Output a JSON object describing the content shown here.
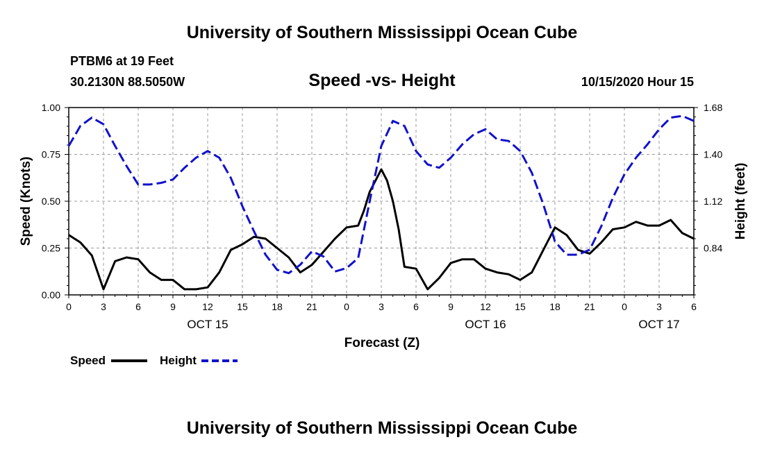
{
  "header": {
    "title_top": "University of Southern Mississippi Ocean Cube",
    "title_bottom": "University of Southern Mississippi Ocean Cube",
    "station": "PTBM6 at 19 Feet",
    "coords": "30.2130N 88.5050W",
    "subtitle": "Speed -vs- Height",
    "timestamp": "10/15/2020 Hour 15"
  },
  "chart_data": {
    "type": "line",
    "title": "Speed -vs- Height",
    "xlabel": "Forecast (Z)",
    "ylabel_left": "Speed (Knots)",
    "ylabel_right": "Height (feet)",
    "x_range_hours": [
      0,
      54
    ],
    "x_ticks": [
      {
        "h": 0,
        "label": "0"
      },
      {
        "h": 3,
        "label": "3"
      },
      {
        "h": 6,
        "label": "6"
      },
      {
        "h": 9,
        "label": "9"
      },
      {
        "h": 12,
        "label": "12"
      },
      {
        "h": 15,
        "label": "15"
      },
      {
        "h": 18,
        "label": "18"
      },
      {
        "h": 21,
        "label": "21"
      },
      {
        "h": 24,
        "label": "0"
      },
      {
        "h": 27,
        "label": "3"
      },
      {
        "h": 30,
        "label": "6"
      },
      {
        "h": 33,
        "label": "9"
      },
      {
        "h": 36,
        "label": "12"
      },
      {
        "h": 39,
        "label": "15"
      },
      {
        "h": 42,
        "label": "18"
      },
      {
        "h": 45,
        "label": "21"
      },
      {
        "h": 48,
        "label": "0"
      },
      {
        "h": 51,
        "label": "3"
      },
      {
        "h": 54,
        "label": "6"
      }
    ],
    "date_labels": [
      {
        "h": 12,
        "label": "OCT 15"
      },
      {
        "h": 36,
        "label": "OCT 16"
      },
      {
        "h": 51,
        "label": "OCT 17"
      }
    ],
    "y_left": {
      "min": 0,
      "max": 1,
      "ticks": [
        {
          "v": 0,
          "label": "0.00"
        },
        {
          "v": 0.25,
          "label": "0.25"
        },
        {
          "v": 0.5,
          "label": "0.50"
        },
        {
          "v": 0.75,
          "label": "0.75"
        },
        {
          "v": 1,
          "label": "1.00"
        }
      ]
    },
    "y_right": {
      "min": 0.56,
      "max": 1.68,
      "ticks": [
        {
          "v": 0.84,
          "label": "0.84"
        },
        {
          "v": 1.12,
          "label": "1.12"
        },
        {
          "v": 1.4,
          "label": "1.40"
        },
        {
          "v": 1.68,
          "label": "1.68"
        }
      ]
    },
    "grid": true,
    "legend_position": "bottom-left",
    "series": [
      {
        "name": "Speed",
        "axis": "left",
        "color": "#000000",
        "dash": false,
        "points": [
          [
            0,
            0.32
          ],
          [
            0.5,
            0.3
          ],
          [
            1,
            0.28
          ],
          [
            2,
            0.21
          ],
          [
            3,
            0.03
          ],
          [
            4,
            0.18
          ],
          [
            5,
            0.2
          ],
          [
            6,
            0.19
          ],
          [
            7,
            0.12
          ],
          [
            8,
            0.08
          ],
          [
            9,
            0.08
          ],
          [
            10,
            0.03
          ],
          [
            11,
            0.03
          ],
          [
            12,
            0.04
          ],
          [
            13,
            0.12
          ],
          [
            14,
            0.24
          ],
          [
            15,
            0.27
          ],
          [
            16,
            0.31
          ],
          [
            17,
            0.3
          ],
          [
            18,
            0.25
          ],
          [
            19,
            0.2
          ],
          [
            20,
            0.12
          ],
          [
            21,
            0.16
          ],
          [
            22,
            0.23
          ],
          [
            23,
            0.3
          ],
          [
            24,
            0.36
          ],
          [
            25,
            0.37
          ],
          [
            25.5,
            0.45
          ],
          [
            26,
            0.55
          ],
          [
            27,
            0.67
          ],
          [
            27.5,
            0.61
          ],
          [
            28,
            0.5
          ],
          [
            28.5,
            0.35
          ],
          [
            29,
            0.15
          ],
          [
            30,
            0.14
          ],
          [
            31,
            0.03
          ],
          [
            32,
            0.09
          ],
          [
            33,
            0.17
          ],
          [
            34,
            0.19
          ],
          [
            35,
            0.19
          ],
          [
            36,
            0.14
          ],
          [
            37,
            0.12
          ],
          [
            38,
            0.11
          ],
          [
            39,
            0.08
          ],
          [
            40,
            0.12
          ],
          [
            41,
            0.24
          ],
          [
            42,
            0.36
          ],
          [
            43,
            0.32
          ],
          [
            44,
            0.24
          ],
          [
            45,
            0.22
          ],
          [
            46,
            0.28
          ],
          [
            47,
            0.35
          ],
          [
            48,
            0.36
          ],
          [
            49,
            0.39
          ],
          [
            50,
            0.37
          ],
          [
            51,
            0.37
          ],
          [
            52,
            0.4
          ],
          [
            53,
            0.33
          ],
          [
            54,
            0.3
          ]
        ]
      },
      {
        "name": "Height",
        "axis": "right",
        "color": "#1111cc",
        "dash": true,
        "points": [
          [
            0,
            1.45
          ],
          [
            1,
            1.57
          ],
          [
            2,
            1.62
          ],
          [
            3,
            1.58
          ],
          [
            4,
            1.45
          ],
          [
            5,
            1.33
          ],
          [
            6,
            1.22
          ],
          [
            7,
            1.22
          ],
          [
            8,
            1.23
          ],
          [
            9,
            1.25
          ],
          [
            10,
            1.32
          ],
          [
            11,
            1.38
          ],
          [
            12,
            1.42
          ],
          [
            13,
            1.38
          ],
          [
            14,
            1.26
          ],
          [
            15,
            1.09
          ],
          [
            16,
            0.94
          ],
          [
            17,
            0.8
          ],
          [
            18,
            0.71
          ],
          [
            19,
            0.69
          ],
          [
            20,
            0.74
          ],
          [
            21,
            0.82
          ],
          [
            22,
            0.79
          ],
          [
            23,
            0.7
          ],
          [
            24,
            0.72
          ],
          [
            25,
            0.78
          ],
          [
            26,
            1.12
          ],
          [
            27,
            1.45
          ],
          [
            28,
            1.6
          ],
          [
            29,
            1.57
          ],
          [
            30,
            1.42
          ],
          [
            31,
            1.34
          ],
          [
            32,
            1.32
          ],
          [
            33,
            1.38
          ],
          [
            34,
            1.46
          ],
          [
            35,
            1.52
          ],
          [
            36,
            1.55
          ],
          [
            37,
            1.49
          ],
          [
            38,
            1.48
          ],
          [
            39,
            1.42
          ],
          [
            40,
            1.29
          ],
          [
            41,
            1.1
          ],
          [
            42,
            0.88
          ],
          [
            43,
            0.8
          ],
          [
            44,
            0.8
          ],
          [
            45,
            0.83
          ],
          [
            46,
            0.97
          ],
          [
            47,
            1.14
          ],
          [
            48,
            1.28
          ],
          [
            49,
            1.38
          ],
          [
            50,
            1.46
          ],
          [
            51,
            1.55
          ],
          [
            52,
            1.62
          ],
          [
            53,
            1.63
          ],
          [
            54,
            1.6
          ]
        ]
      }
    ]
  }
}
